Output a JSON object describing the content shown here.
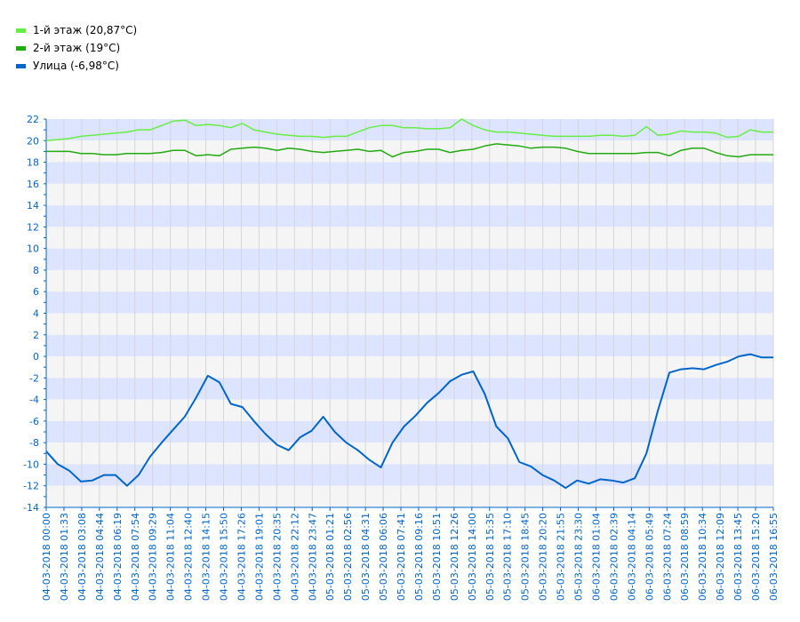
{
  "chart_data": {
    "type": "line",
    "legend_position": "top-left",
    "grid": true,
    "ylim": [
      -14,
      22
    ],
    "y_ticks": [
      "22",
      "20",
      "18",
      "16",
      "14",
      "12",
      "10",
      "8",
      "6",
      "4",
      "2",
      "0",
      "-2",
      "-4",
      "-6",
      "-8",
      "-10",
      "-12",
      "-14"
    ],
    "x_ticks": [
      "04-03-2018 00:00",
      "04-03-2018 01:33",
      "04-03-2018 03:08",
      "04-03-2018 04:44",
      "04-03-2018 06:19",
      "04-03-2018 07:54",
      "04-03-2018 09:29",
      "04-03-2018 11:04",
      "04-03-2018 12:40",
      "04-03-2018 14:15",
      "04-03-2018 15:50",
      "04-03-2018 17:26",
      "04-03-2018 19:01",
      "04-03-2018 20:35",
      "04-03-2018 22:12",
      "04-03-2018 23:47",
      "05-03-2018 01:21",
      "05-03-2018 02:56",
      "05-03-2018 04:31",
      "05-03-2018 06:06",
      "05-03-2018 07:41",
      "05-03-2018 09:16",
      "05-03-2018 10:51",
      "05-03-2018 12:26",
      "05-03-2018 14:00",
      "05-03-2018 15:35",
      "05-03-2018 17:10",
      "05-03-2018 18:45",
      "05-03-2018 20:20",
      "05-03-2018 21:55",
      "05-03-2018 23:30",
      "06-03-2018 01:04",
      "06-03-2018 02:39",
      "06-03-2018 04:14",
      "06-03-2018 05:49",
      "06-03-2018 07:24",
      "06-03-2018 08:59",
      "06-03-2018 10:34",
      "06-03-2018 12:09",
      "06-03-2018 13:45",
      "06-03-2018 15:20",
      "06-03-2018 16:55"
    ],
    "series": [
      {
        "name": "1-й этаж (20,87°C)",
        "color": "#66ee44",
        "values": [
          20.0,
          20.1,
          20.2,
          20.4,
          20.5,
          20.6,
          20.7,
          20.8,
          21.0,
          21.0,
          21.4,
          21.8,
          21.9,
          21.4,
          21.5,
          21.4,
          21.2,
          21.6,
          21.0,
          20.8,
          20.6,
          20.5,
          20.4,
          20.4,
          20.3,
          20.4,
          20.4,
          20.8,
          21.2,
          21.4,
          21.4,
          21.2,
          21.2,
          21.1,
          21.1,
          21.2,
          22.0,
          21.4,
          21.0,
          20.8,
          20.8,
          20.7,
          20.6,
          20.5,
          20.4,
          20.4,
          20.4,
          20.4,
          20.5,
          20.5,
          20.4,
          20.5,
          21.3,
          20.5,
          20.6,
          20.9,
          20.8,
          20.8,
          20.7,
          20.3,
          20.4,
          21.0,
          20.8,
          20.8
        ]
      },
      {
        "name": "2-й этаж (19°C)",
        "color": "#22aa11",
        "values": [
          19.0,
          19.0,
          19.0,
          18.8,
          18.8,
          18.7,
          18.7,
          18.8,
          18.8,
          18.8,
          18.9,
          19.1,
          19.1,
          18.6,
          18.7,
          18.6,
          19.2,
          19.3,
          19.4,
          19.3,
          19.1,
          19.3,
          19.2,
          19.0,
          18.9,
          19.0,
          19.1,
          19.2,
          19.0,
          19.1,
          18.5,
          18.9,
          19.0,
          19.2,
          19.2,
          18.9,
          19.1,
          19.2,
          19.5,
          19.7,
          19.6,
          19.5,
          19.3,
          19.4,
          19.4,
          19.3,
          19.0,
          18.8,
          18.8,
          18.8,
          18.8,
          18.8,
          18.9,
          18.9,
          18.6,
          19.1,
          19.3,
          19.3,
          18.9,
          18.6,
          18.5,
          18.7,
          18.7,
          18.7
        ]
      },
      {
        "name": "Улица (-6,98°C)",
        "color": "#0066cc",
        "values": [
          -8.8,
          -10.0,
          -10.6,
          -11.6,
          -11.5,
          -11.0,
          -11.0,
          -12.0,
          -11.0,
          -9.3,
          -8.0,
          -6.8,
          -5.6,
          -3.8,
          -1.8,
          -2.4,
          -4.4,
          -4.7,
          -6.0,
          -7.2,
          -8.2,
          -8.7,
          -7.5,
          -6.9,
          -5.6,
          -7.0,
          -8.0,
          -8.7,
          -9.6,
          -10.3,
          -8.0,
          -6.5,
          -5.5,
          -4.3,
          -3.4,
          -2.3,
          -1.7,
          -1.4,
          -3.5,
          -6.5,
          -7.6,
          -9.8,
          -10.2,
          -11.0,
          -11.5,
          -12.2,
          -11.5,
          -11.8,
          -11.4,
          -11.5,
          -11.7,
          -11.3,
          -9.0,
          -5.0,
          -1.5,
          -1.2,
          -1.1,
          -1.2,
          -0.8,
          -0.5,
          0.0,
          0.2,
          -0.1,
          -0.1
        ]
      }
    ]
  }
}
